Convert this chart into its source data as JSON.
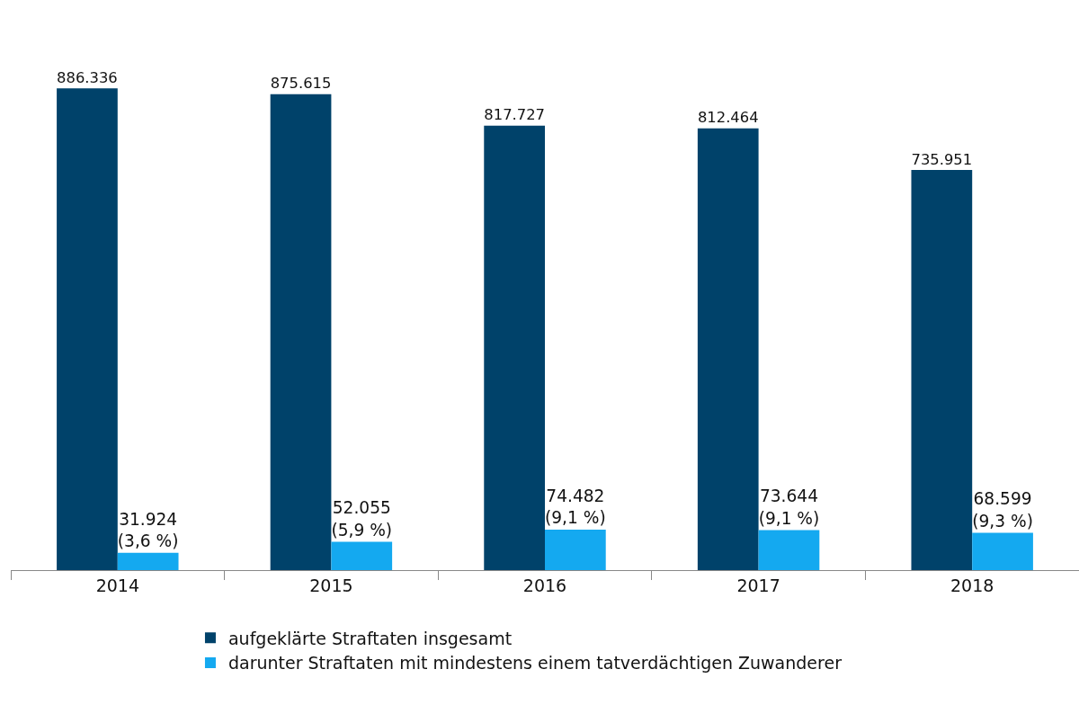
{
  "chart_data": {
    "type": "bar",
    "categories": [
      "2014",
      "2015",
      "2016",
      "2017",
      "2018"
    ],
    "series": [
      {
        "name": "aufgeklärte Straftaten insgesamt",
        "color": "#00426a",
        "values": [
          886336,
          875615,
          817727,
          812464,
          735951
        ],
        "value_labels": [
          "886.336",
          "875.615",
          "817.727",
          "812.464",
          "735.951"
        ]
      },
      {
        "name": "darunter Straftaten mit mindestens einem tatverdächtigen Zuwanderer",
        "color": "#14a9f0",
        "values": [
          31924,
          52055,
          74482,
          73644,
          68599
        ],
        "value_labels": [
          "31.924\n(3,6 %)",
          "52.055\n(5,9 %)",
          "74.482\n(9,1 %)",
          "73.644\n(9,1 %)",
          "68.599\n(9,3 %)"
        ]
      }
    ],
    "grid": false,
    "legend": "bottom"
  }
}
